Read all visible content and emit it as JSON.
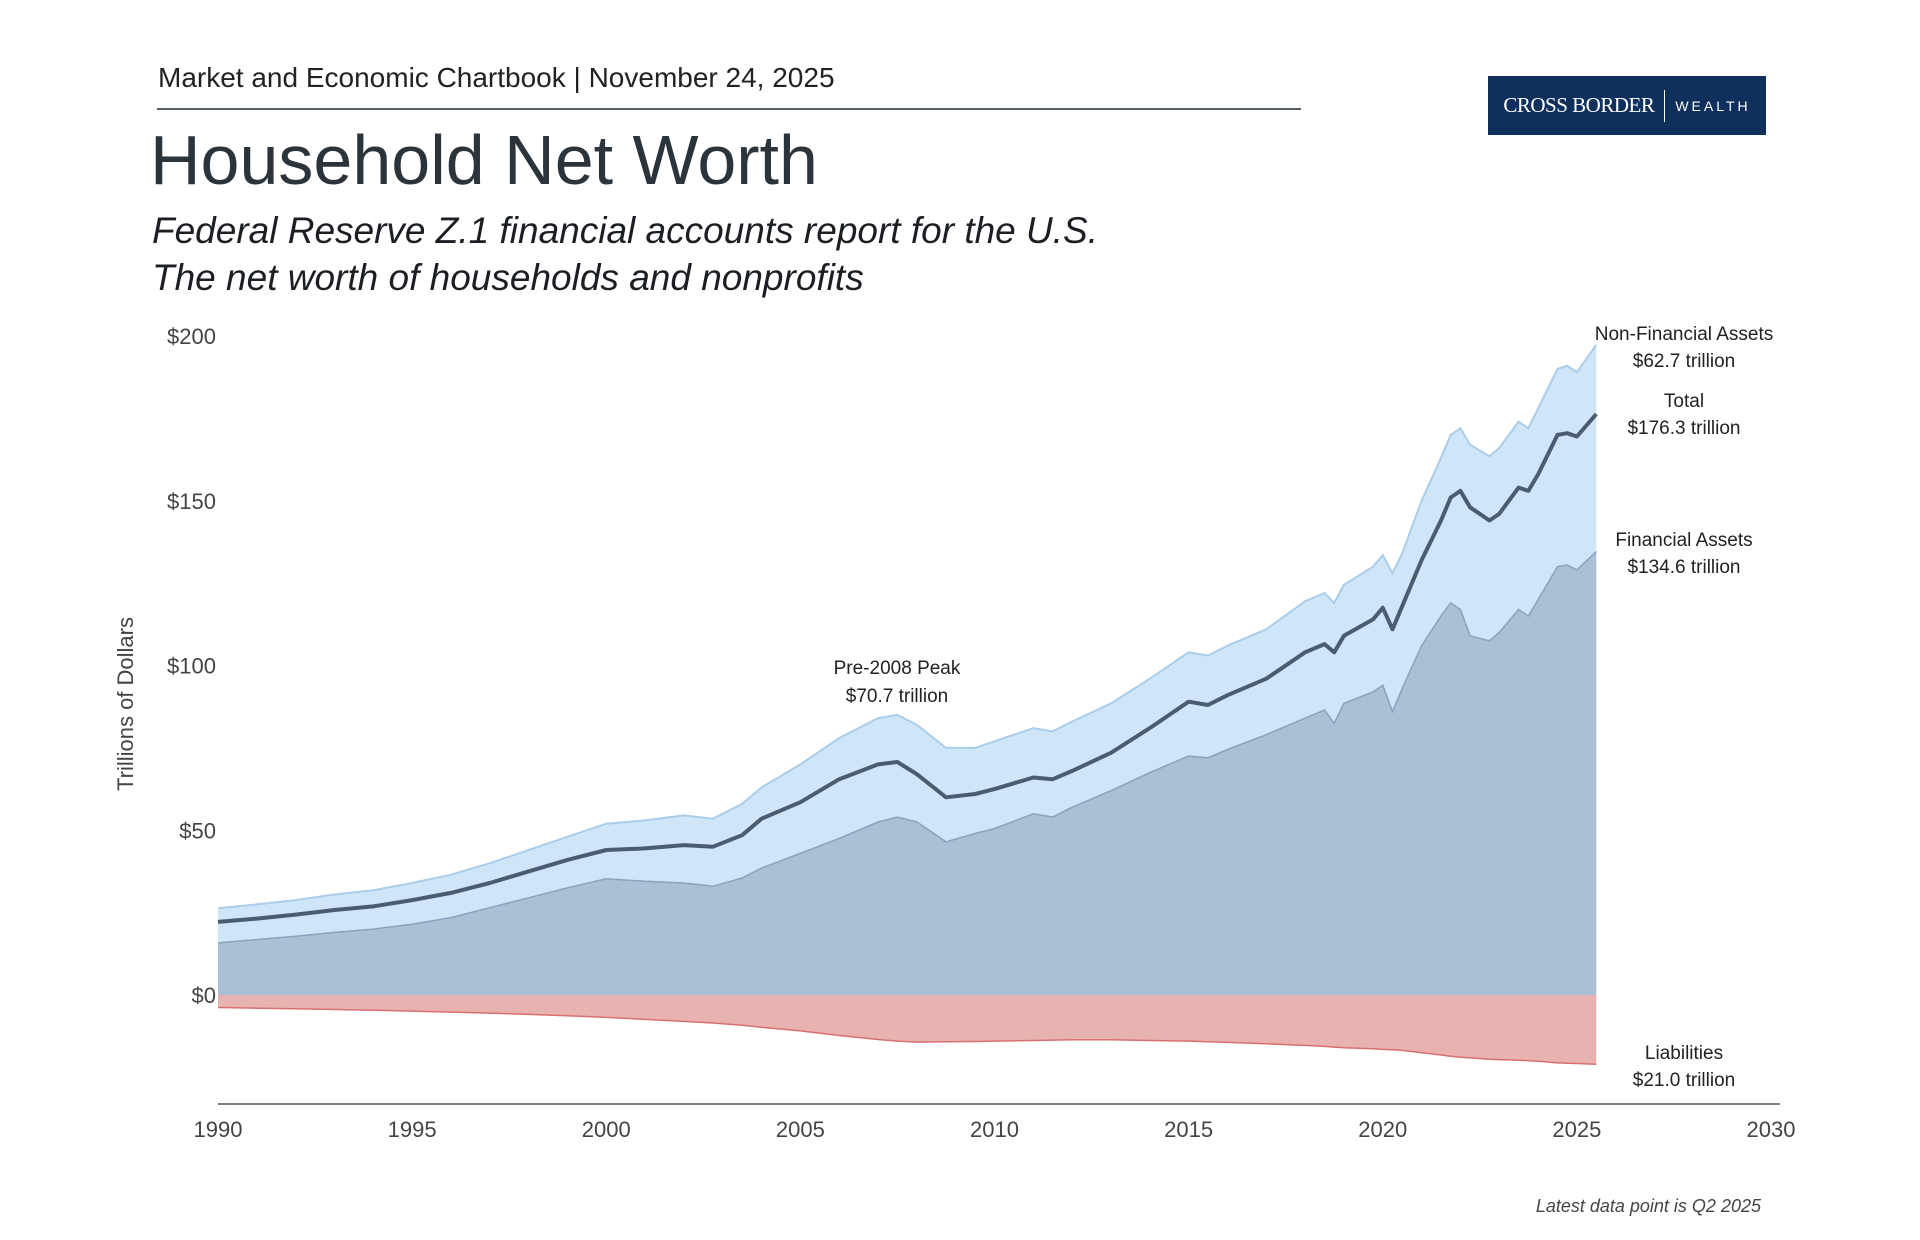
{
  "header": {
    "chartbook": "Market and Economic Chartbook | November 24, 2025",
    "logo_text": "CROSS BORDER | WEALTH",
    "logo_left": "CROSS BORDER",
    "logo_right": "WEALTH",
    "title": "Household Net Worth",
    "subtitle_line1": "Federal Reserve Z.1 financial accounts report for the U.S.",
    "subtitle_line2": "The net worth of households and nonprofits"
  },
  "footnote": "Latest data point is Q2 2025",
  "colors": {
    "non_financial_assets": "#cfe6f8",
    "financial_assets": "#aac1d5",
    "total_net_worth": "#4a5d70",
    "liabilities": "#e8b2b1",
    "logo_bg": "#0f2f5c"
  },
  "chart_data": {
    "type": "area",
    "title": "Household Net Worth",
    "xlabel": "",
    "ylabel": "Trillions of Dollars",
    "xlim": [
      1990,
      2030
    ],
    "ylim": [
      -21,
      200
    ],
    "x_ticks": [
      "1990",
      "1995",
      "2000",
      "2005",
      "2010",
      "2015",
      "2020",
      "2025",
      "2030"
    ],
    "y_ticks": [
      "$0",
      "$50",
      "$100",
      "$150",
      "$200"
    ],
    "y_tick_values": [
      0,
      50,
      100,
      150,
      200
    ],
    "x_tick_values": [
      1990,
      1995,
      2000,
      2005,
      2010,
      2015,
      2020,
      2025,
      2030
    ],
    "grid": false,
    "x": [
      1990,
      1991,
      1992,
      1993,
      1994,
      1995,
      1996,
      1997,
      1998,
      1999,
      2000,
      2001,
      2002,
      2002.75,
      2003.5,
      2004,
      2005,
      2006,
      2007,
      2007.5,
      2008,
      2008.75,
      2009.5,
      2010,
      2011,
      2011.5,
      2012,
      2013,
      2014,
      2015,
      2015.5,
      2016,
      2017,
      2018,
      2018.5,
      2018.75,
      2019,
      2019.75,
      2020,
      2020.25,
      2020.5,
      2021,
      2021.5,
      2021.75,
      2022,
      2022.25,
      2022.75,
      2023,
      2023.5,
      2023.75,
      2024,
      2024.5,
      2024.75,
      2025,
      2025.5
    ],
    "series": [
      {
        "name": "Non-Financial Assets",
        "key": "total_assets",
        "values": [
          26.3,
          27.5,
          28.8,
          30.5,
          31.8,
          34,
          36.5,
          40,
          44,
          48,
          52,
          53,
          54.5,
          53.5,
          58,
          63,
          70,
          78,
          84,
          85,
          82,
          75,
          75,
          77,
          81,
          80,
          83,
          88.5,
          96,
          104,
          103,
          106,
          111,
          119.5,
          122,
          119,
          124.5,
          130,
          133.5,
          128,
          134,
          150,
          163,
          170,
          172,
          167,
          163.5,
          166,
          174,
          172,
          178,
          190,
          191,
          189,
          197.3
        ]
      },
      {
        "name": "Total",
        "key": "net_worth",
        "values": [
          22.2,
          23.2,
          24.4,
          25.8,
          26.9,
          28.8,
          31,
          34,
          37.5,
          41,
          44,
          44.5,
          45.5,
          45,
          48.5,
          53.5,
          58.5,
          65.5,
          70,
          70.7,
          67,
          60,
          61,
          62.5,
          66,
          65.5,
          68,
          73.5,
          81,
          89,
          88,
          91,
          96,
          104,
          106.5,
          104,
          109,
          114,
          117.5,
          111,
          118,
          132,
          144,
          151,
          153,
          148,
          144,
          146,
          154,
          153,
          158,
          170,
          170.5,
          169.5,
          176.3
        ]
      },
      {
        "name": "Financial Assets",
        "key": "financial_assets",
        "values": [
          15.8,
          16.8,
          17.8,
          19,
          20,
          21.5,
          23.5,
          26.5,
          29.5,
          32.5,
          35.3,
          34.5,
          34,
          33,
          35.5,
          38.5,
          43,
          47.5,
          52.5,
          54,
          52.5,
          46.5,
          49,
          50.5,
          55,
          54,
          57,
          62,
          67.5,
          72.5,
          72,
          74.5,
          79,
          84,
          86.5,
          82.5,
          88.5,
          92,
          94,
          86,
          93,
          106,
          115,
          119,
          117,
          109,
          107.5,
          110,
          117,
          115,
          120,
          130,
          130.5,
          129,
          134.6
        ]
      },
      {
        "name": "Liabilities",
        "key": "liabilities",
        "values": [
          -3.8,
          -4,
          -4.2,
          -4.4,
          -4.6,
          -4.9,
          -5.2,
          -5.5,
          -5.9,
          -6.3,
          -6.8,
          -7.4,
          -8,
          -8.5,
          -9.2,
          -9.8,
          -10.9,
          -12.3,
          -13.5,
          -14,
          -14.3,
          -14.2,
          -14.1,
          -14,
          -13.8,
          -13.7,
          -13.6,
          -13.6,
          -13.8,
          -14,
          -14.2,
          -14.4,
          -14.8,
          -15.3,
          -15.6,
          -15.8,
          -16,
          -16.3,
          -16.5,
          -16.6,
          -16.8,
          -17.5,
          -18.2,
          -18.6,
          -18.9,
          -19.1,
          -19.5,
          -19.6,
          -19.8,
          -19.9,
          -20.1,
          -20.6,
          -20.7,
          -20.8,
          -21
        ]
      }
    ],
    "annotations": {
      "non_financial": {
        "label": "Non-Financial Assets",
        "value": "$62.7 trillion"
      },
      "total": {
        "label": "Total",
        "value": "$176.3 trillion"
      },
      "financial": {
        "label": "Financial Assets",
        "value": "$134.6 trillion"
      },
      "liabilities": {
        "label": "Liabilities",
        "value": "$21.0 trillion"
      },
      "peak": {
        "label": "Pre-2008 Peak",
        "value": "$70.7 trillion",
        "x": 2007.5,
        "y": 70.7
      }
    }
  }
}
